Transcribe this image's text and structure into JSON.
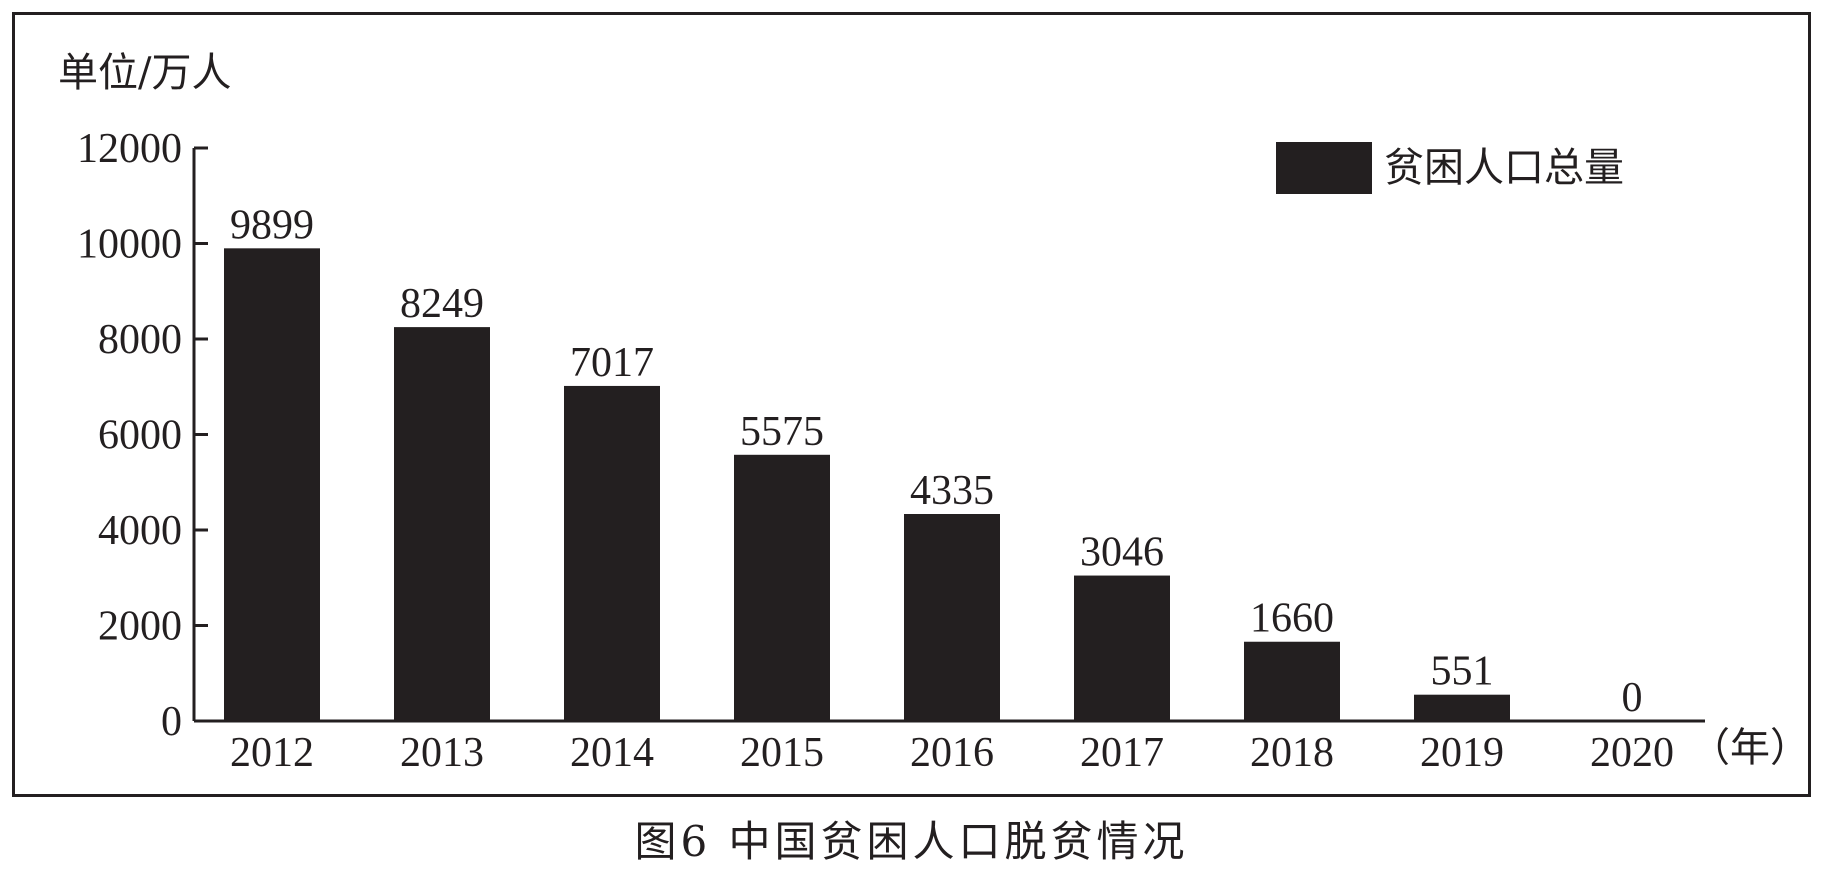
{
  "caption": "图6  中国贫困人口脱贫情况",
  "chart_data": {
    "type": "bar",
    "title": "",
    "ylabel": "单位/万人",
    "xlabel": "（年）",
    "categories": [
      "2012",
      "2013",
      "2014",
      "2015",
      "2016",
      "2017",
      "2018",
      "2019",
      "2020"
    ],
    "series": [
      {
        "name": "贫困人口总量",
        "values": [
          9899,
          8249,
          7017,
          5575,
          4335,
          3046,
          1660,
          551,
          0
        ]
      }
    ],
    "data_labels": [
      "9899",
      "8249",
      "7017",
      "5575",
      "4335",
      "3046",
      "1660",
      "551",
      "0"
    ],
    "ylim": [
      0,
      12000
    ],
    "yticks": [
      0,
      2000,
      4000,
      6000,
      8000,
      10000,
      12000
    ],
    "ytick_labels": [
      "0",
      "2000",
      "4000",
      "6000",
      "8000",
      "10000",
      "12000"
    ],
    "legend_position": "top-right",
    "grid": false,
    "colors": {
      "bar": "#231f20",
      "axis": "#231f20",
      "text": "#231f20"
    }
  }
}
